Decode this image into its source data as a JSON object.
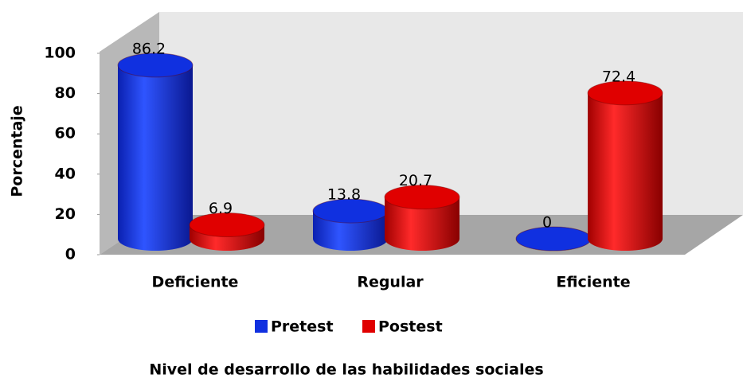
{
  "chart_data": {
    "type": "bar3d",
    "xlabel": "Nivel de desarrollo de las habilidades sociales",
    "ylabel": "Porcentaje",
    "categories": [
      "Deficiente",
      "Regular",
      "Eficiente"
    ],
    "series": [
      {
        "name": "Pretest",
        "color": "#1030e0",
        "values": [
          86.2,
          13.8,
          0
        ]
      },
      {
        "name": "Postest",
        "color": "#e00000",
        "values": [
          6.9,
          20.7,
          72.4
        ]
      }
    ],
    "ylim": [
      0,
      100
    ],
    "yticks": [
      0,
      20,
      40,
      60,
      80,
      100
    ],
    "legend": "bottom"
  }
}
